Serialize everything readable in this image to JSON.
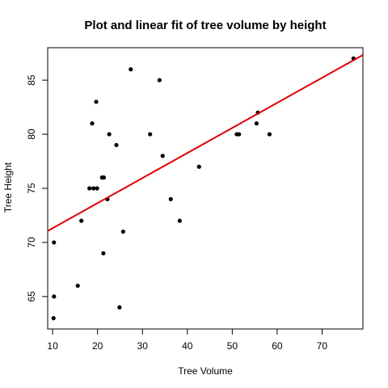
{
  "chart_data": {
    "type": "scatter",
    "title": "Plot and linear fit of tree volume by height",
    "xlabel": "Tree Volume",
    "ylabel": "Tree Height",
    "xlim": [
      8.9,
      79.1
    ],
    "ylim": [
      62.0,
      88.0
    ],
    "xticks": [
      10,
      20,
      30,
      40,
      50,
      60,
      70
    ],
    "yticks": [
      65,
      70,
      75,
      80,
      85
    ],
    "points": [
      {
        "x": 10.3,
        "y": 70
      },
      {
        "x": 10.3,
        "y": 65
      },
      {
        "x": 10.2,
        "y": 63
      },
      {
        "x": 16.4,
        "y": 72
      },
      {
        "x": 18.8,
        "y": 81
      },
      {
        "x": 19.7,
        "y": 83
      },
      {
        "x": 15.6,
        "y": 66
      },
      {
        "x": 18.2,
        "y": 75
      },
      {
        "x": 22.6,
        "y": 80
      },
      {
        "x": 19.9,
        "y": 75
      },
      {
        "x": 24.2,
        "y": 79
      },
      {
        "x": 21.0,
        "y": 76
      },
      {
        "x": 21.4,
        "y": 76
      },
      {
        "x": 21.3,
        "y": 69
      },
      {
        "x": 19.1,
        "y": 75
      },
      {
        "x": 22.2,
        "y": 74
      },
      {
        "x": 33.8,
        "y": 85
      },
      {
        "x": 27.4,
        "y": 86
      },
      {
        "x": 25.7,
        "y": 71
      },
      {
        "x": 24.9,
        "y": 64
      },
      {
        "x": 34.5,
        "y": 78
      },
      {
        "x": 31.7,
        "y": 80
      },
      {
        "x": 36.3,
        "y": 74
      },
      {
        "x": 38.3,
        "y": 72
      },
      {
        "x": 42.6,
        "y": 77
      },
      {
        "x": 55.4,
        "y": 81
      },
      {
        "x": 55.7,
        "y": 82
      },
      {
        "x": 58.3,
        "y": 80
      },
      {
        "x": 51.5,
        "y": 80
      },
      {
        "x": 51.0,
        "y": 80
      },
      {
        "x": 77.0,
        "y": 87
      }
    ],
    "fit": {
      "type": "linear",
      "intercept": 69.0,
      "slope": 0.2317,
      "color": "#e00000"
    },
    "point_color": "#000000"
  }
}
